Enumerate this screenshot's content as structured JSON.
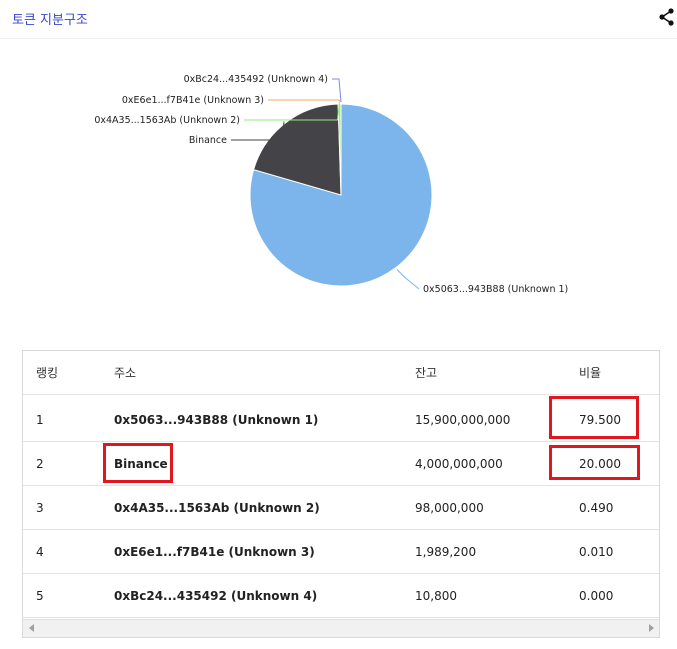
{
  "header": {
    "title": "토큰 지분구조",
    "share_icon": "share-icon"
  },
  "colors": {
    "title": "#3a46c6",
    "highlight": "#e0171f"
  },
  "table": {
    "headers": [
      "랭킹",
      "주소",
      "잔고",
      "비율"
    ],
    "rows": [
      {
        "rank": "1",
        "address": "0x5063...943B88 (Unknown 1)",
        "balance": "15,900,000,000",
        "ratio": "79.500"
      },
      {
        "rank": "2",
        "address": "Binance",
        "balance": "4,000,000,000",
        "ratio": "20.000"
      },
      {
        "rank": "3",
        "address": "0x4A35...1563Ab (Unknown 2)",
        "balance": "98,000,000",
        "ratio": "0.490"
      },
      {
        "rank": "4",
        "address": "0xE6e1...f7B41e (Unknown 3)",
        "balance": "1,989,200",
        "ratio": "0.010"
      },
      {
        "rank": "5",
        "address": "0xBc24...435492 (Unknown 4)",
        "balance": "10,800",
        "ratio": "0.000"
      }
    ]
  },
  "chart_data": {
    "type": "pie",
    "slices": [
      {
        "label": "0x5063...943B88 (Unknown 1)",
        "value": 79.5,
        "color": "#7cb5ec"
      },
      {
        "label": "Binance",
        "value": 20.0,
        "color": "#434348"
      },
      {
        "label": "0x4A35...1563Ab (Unknown 2)",
        "value": 0.49,
        "color": "#90ed7d"
      },
      {
        "label": "0xE6e1...f7B41e (Unknown 3)",
        "value": 0.01,
        "color": "#f7a35c"
      },
      {
        "label": "0xBc24...435492 (Unknown 4)",
        "value": 0.0,
        "color": "#8085e9"
      }
    ]
  }
}
